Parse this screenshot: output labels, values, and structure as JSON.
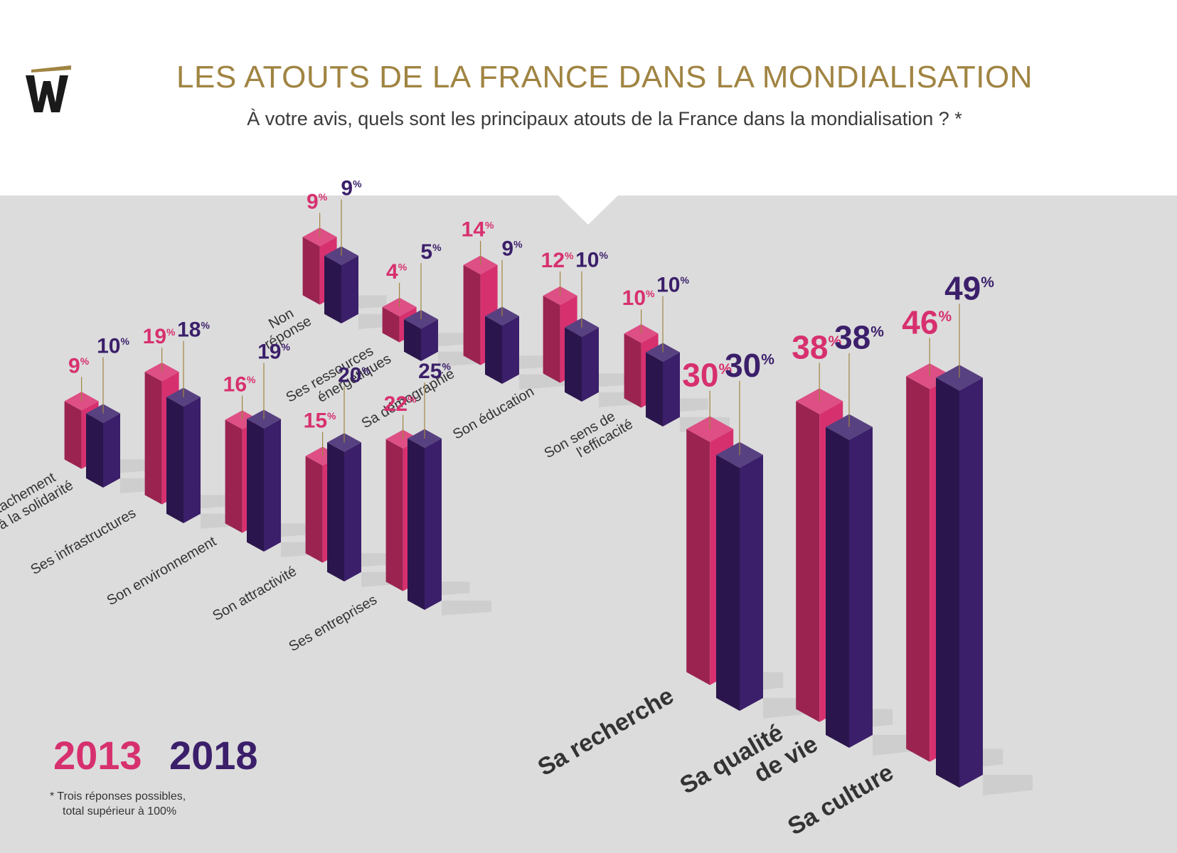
{
  "header": {
    "title": "LES ATOUTS DE LA FRANCE DANS LA MONDIALISATION",
    "subtitle": "À votre avis, quels sont les principaux atouts de la France dans la mondialisation ? *"
  },
  "legend": {
    "year_a": "2013",
    "year_b": "2018"
  },
  "footnote": {
    "line1": "*  Trois réponses possibles,",
    "line2": "total supérieur à 100%"
  },
  "colors": {
    "background_panel": "#dcdcdc",
    "title": "#a08442",
    "series_2013": "#d7306f",
    "series_2018": "#3b1f6a",
    "logo_bar": "#a08442"
  },
  "chart_data": {
    "type": "bar",
    "unit": "%",
    "series": [
      {
        "name": "2013",
        "color": "#d7306f"
      },
      {
        "name": "2018",
        "color": "#3b1f6a"
      }
    ],
    "categories": [
      {
        "label": [
          "Non",
          "réponse"
        ],
        "v2013": 9,
        "v2018": 9
      },
      {
        "label": [
          "Ses ressources",
          "énergétiques"
        ],
        "v2013": 4,
        "v2018": 5
      },
      {
        "label": [
          "Sa démographie"
        ],
        "v2013": 14,
        "v2018": 9
      },
      {
        "label": [
          "Son éducation"
        ],
        "v2013": 12,
        "v2018": 10
      },
      {
        "label": [
          "Son sens de",
          "l'efficacité"
        ],
        "v2013": 10,
        "v2018": 10
      },
      {
        "label": [
          "Son attachement",
          "à la solidarité"
        ],
        "v2013": 9,
        "v2018": 10
      },
      {
        "label": [
          "Ses infrastructures"
        ],
        "v2013": 19,
        "v2018": 18
      },
      {
        "label": [
          "Son environnement"
        ],
        "v2013": 16,
        "v2018": 19
      },
      {
        "label": [
          "Son attractivité"
        ],
        "v2013": 15,
        "v2018": 20
      },
      {
        "label": [
          "Ses entreprises"
        ],
        "v2013": 22,
        "v2018": 25
      },
      {
        "label": [
          "Sa recherche"
        ],
        "v2013": 30,
        "v2018": 30
      },
      {
        "label": [
          "Sa qualité",
          "de vie"
        ],
        "v2013": 38,
        "v2018": 38
      },
      {
        "label": [
          "Sa culture"
        ],
        "v2013": 46,
        "v2018": 49
      }
    ]
  }
}
